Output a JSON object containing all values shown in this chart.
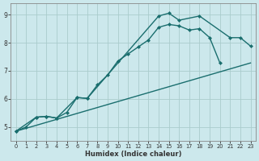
{
  "xlabel": "Humidex (Indice chaleur)",
  "bg_color": "#cce8ec",
  "grid_color": "#aacccc",
  "line_color": "#1a6e6e",
  "xlim": [
    -0.5,
    23.5
  ],
  "ylim": [
    4.5,
    9.4
  ],
  "yticks": [
    5,
    6,
    7,
    8,
    9
  ],
  "xticks": [
    0,
    1,
    2,
    3,
    4,
    5,
    6,
    7,
    8,
    9,
    10,
    11,
    12,
    13,
    14,
    15,
    16,
    17,
    18,
    19,
    20,
    21,
    22,
    23
  ],
  "series1_x": [
    0,
    1,
    2,
    3,
    4,
    5,
    6,
    7,
    8,
    9,
    10,
    11,
    12,
    13,
    14,
    15,
    16,
    17,
    18,
    19,
    20
  ],
  "series1_y": [
    4.85,
    5.0,
    5.35,
    5.38,
    5.32,
    5.52,
    6.05,
    6.02,
    6.5,
    6.85,
    7.35,
    7.6,
    7.85,
    8.1,
    8.55,
    8.65,
    8.6,
    8.45,
    8.5,
    8.18,
    7.28
  ],
  "series2_x": [
    0,
    2,
    3,
    4,
    6,
    7,
    14,
    15,
    16,
    18,
    21,
    22,
    23
  ],
  "series2_y": [
    4.85,
    5.35,
    5.38,
    5.32,
    6.05,
    6.02,
    8.95,
    9.05,
    8.8,
    8.95,
    8.18,
    8.18,
    7.88
  ],
  "series3_x": [
    0,
    23
  ],
  "series3_y": [
    4.85,
    7.28
  ]
}
